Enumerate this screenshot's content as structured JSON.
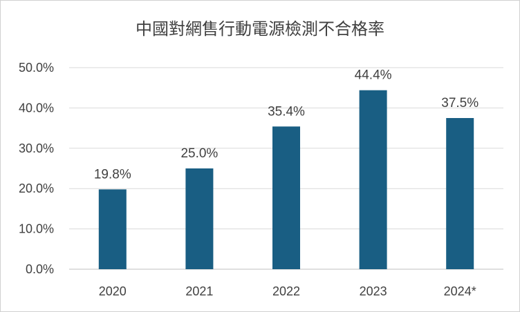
{
  "chart_data": {
    "type": "bar",
    "title": "中國對網售行動電源檢測不合格率",
    "categories": [
      "2020",
      "2021",
      "2022",
      "2023",
      "2024*"
    ],
    "values": [
      19.8,
      25.0,
      35.4,
      44.4,
      37.5
    ],
    "data_labels": [
      "19.8%",
      "25.0%",
      "35.4%",
      "44.4%",
      "37.5%"
    ],
    "y_ticks": [
      "0.0%",
      "10.0%",
      "20.0%",
      "30.0%",
      "40.0%",
      "50.0%"
    ],
    "ylim": [
      0,
      50
    ],
    "grid": true,
    "bar_color": "#195e83",
    "highlight_label_color": "#e8141b",
    "highlight_index": 3
  }
}
